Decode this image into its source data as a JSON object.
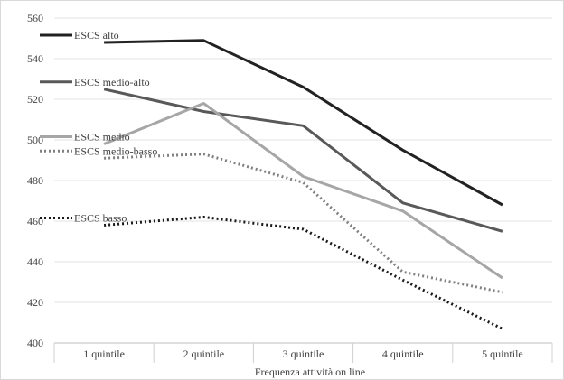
{
  "chart_data": {
    "type": "line",
    "title": "",
    "xlabel": "Frequenza attività on line",
    "ylabel": "",
    "ylim": [
      400,
      560
    ],
    "yticks": [
      400,
      420,
      440,
      460,
      480,
      500,
      520,
      540,
      560
    ],
    "grid": "horizontal",
    "legend": "inline-left",
    "categories": [
      "1 quintile",
      "2 quintile",
      "3 quintile",
      "4 quintile",
      "5 quintile"
    ],
    "series": [
      {
        "name": "ESCS alto",
        "values": [
          548,
          549,
          526,
          495,
          468
        ],
        "color": "#222222",
        "dash": "solid"
      },
      {
        "name": "ESCS medio-alto",
        "values": [
          525,
          514,
          507,
          469,
          455
        ],
        "color": "#595959",
        "dash": "solid"
      },
      {
        "name": "ESCS medio",
        "values": [
          498,
          518,
          482,
          465,
          432
        ],
        "color": "#a6a6a6",
        "dash": "solid"
      },
      {
        "name": "ESCS medio-basso",
        "values": [
          491,
          493,
          479,
          435,
          425
        ],
        "color": "#808080",
        "dash": "dotted"
      },
      {
        "name": "ESCS basso",
        "values": [
          458,
          462,
          456,
          431,
          407
        ],
        "color": "#1a1a1a",
        "dash": "dotted"
      }
    ]
  }
}
